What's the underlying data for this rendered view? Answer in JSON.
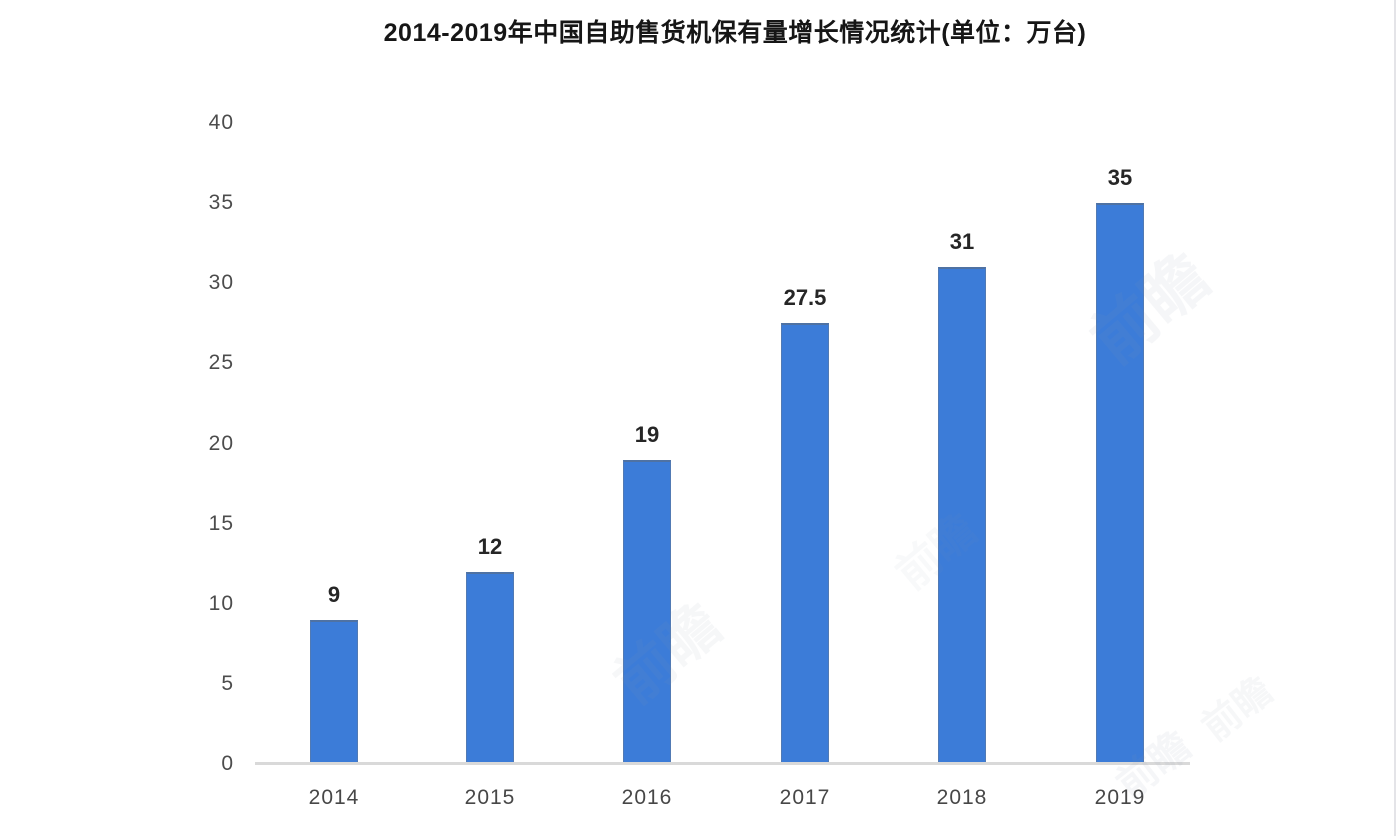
{
  "chart": {
    "bar_color": "#3c7cd8",
    "axis_line_color": "#d9d9d9",
    "watermark_text": "前瞻"
  },
  "chart_data": {
    "type": "bar",
    "title": "2014-2019年中国自助售货机保有量增长情况统计(单位：万台)",
    "categories": [
      "2014",
      "2015",
      "2016",
      "2017",
      "2018",
      "2019"
    ],
    "values": [
      9,
      12,
      19,
      27.5,
      31,
      35
    ],
    "value_labels": [
      "9",
      "12",
      "19",
      "27.5",
      "31",
      "35"
    ],
    "unit": "万台",
    "xlabel": "",
    "ylabel": "",
    "ylim": [
      0,
      40
    ],
    "yticks": [
      0,
      5,
      10,
      15,
      20,
      25,
      30,
      35,
      40
    ],
    "grid": false,
    "legend": null,
    "bar_color_hex": "#3c7cd8"
  }
}
